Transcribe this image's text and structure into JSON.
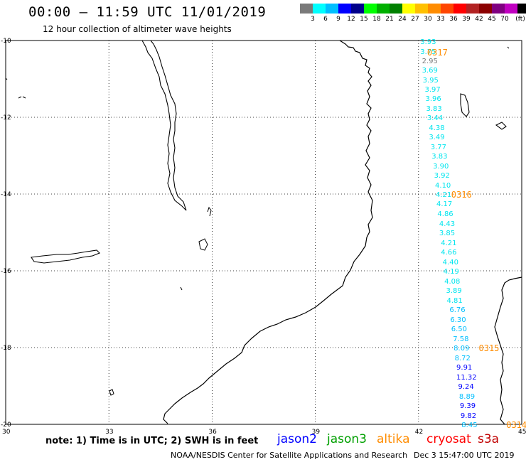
{
  "header": {
    "title": "00:00 – 11:59 UTC 11/01/2019",
    "subtitle": "12 hour collection of altimeter wave heights"
  },
  "legend": {
    "colors": [
      "#7a7a7a",
      "#00ffff",
      "#00bfff",
      "#0000ff",
      "#00008b",
      "#00ff00",
      "#00b000",
      "#008000",
      "#ffff00",
      "#ffc000",
      "#ff8c00",
      "#ff4500",
      "#ff0000",
      "#b22222",
      "#8b0000",
      "#800080",
      "#c000c0",
      "#000000"
    ],
    "labels": [
      "3",
      "6",
      "9",
      "12",
      "15",
      "18",
      "21",
      "24",
      "27",
      "30",
      "33",
      "36",
      "39",
      "42",
      "45",
      "70",
      "(ft)"
    ]
  },
  "axes": {
    "lat_labels": [
      "-10",
      "-12",
      "-14",
      "-16",
      "-18",
      "-20"
    ],
    "lon_labels": [
      "30",
      "33",
      "36",
      "39",
      "42",
      "45"
    ]
  },
  "track": {
    "points": [
      {
        "lat": -10.02,
        "lon": 42.05,
        "val": "3.93",
        "color": "#00e5ee"
      },
      {
        "lat": -10.28,
        "lon": 42.05,
        "val": "3.75",
        "color": "#00e5ee"
      },
      {
        "lat": -10.52,
        "lon": 42.1,
        "val": "2.95",
        "color": "#7a7a7a"
      },
      {
        "lat": -10.76,
        "lon": 42.1,
        "val": "3.69",
        "color": "#00e5ee"
      },
      {
        "lat": -11.02,
        "lon": 42.12,
        "val": "3.95",
        "color": "#00e5ee"
      },
      {
        "lat": -11.26,
        "lon": 42.18,
        "val": "3.97",
        "color": "#00e5ee"
      },
      {
        "lat": -11.5,
        "lon": 42.2,
        "val": "3.96",
        "color": "#00e5ee"
      },
      {
        "lat": -11.76,
        "lon": 42.22,
        "val": "3.83",
        "color": "#00e5ee"
      },
      {
        "lat": -12.0,
        "lon": 42.25,
        "val": "3.44",
        "color": "#00e5ee"
      },
      {
        "lat": -12.26,
        "lon": 42.3,
        "val": "4.38",
        "color": "#00e5ee"
      },
      {
        "lat": -12.5,
        "lon": 42.3,
        "val": "3.49",
        "color": "#00e5ee"
      },
      {
        "lat": -12.76,
        "lon": 42.35,
        "val": "3.77",
        "color": "#00e5ee"
      },
      {
        "lat": -13.0,
        "lon": 42.38,
        "val": "3.83",
        "color": "#00e5ee"
      },
      {
        "lat": -13.26,
        "lon": 42.42,
        "val": "3.90",
        "color": "#00e5ee"
      },
      {
        "lat": -13.5,
        "lon": 42.45,
        "val": "3.92",
        "color": "#00e5ee"
      },
      {
        "lat": -13.76,
        "lon": 42.48,
        "val": "4.10",
        "color": "#00e5ee"
      },
      {
        "lat": -14.0,
        "lon": 42.5,
        "val": "4.21",
        "color": "#00e5ee"
      },
      {
        "lat": -14.24,
        "lon": 42.52,
        "val": "4.17",
        "color": "#00e5ee"
      },
      {
        "lat": -14.5,
        "lon": 42.55,
        "val": "4.86",
        "color": "#00e5ee"
      },
      {
        "lat": -14.76,
        "lon": 42.6,
        "val": "4.43",
        "color": "#00e5ee"
      },
      {
        "lat": -15.0,
        "lon": 42.6,
        "val": "3.85",
        "color": "#00e5ee"
      },
      {
        "lat": -15.26,
        "lon": 42.65,
        "val": "4.21",
        "color": "#00e5ee"
      },
      {
        "lat": -15.5,
        "lon": 42.65,
        "val": "4.66",
        "color": "#00e5ee"
      },
      {
        "lat": -15.76,
        "lon": 42.7,
        "val": "4.40",
        "color": "#00e5ee"
      },
      {
        "lat": -16.0,
        "lon": 42.72,
        "val": "4.19",
        "color": "#00e5ee"
      },
      {
        "lat": -16.26,
        "lon": 42.75,
        "val": "4.08",
        "color": "#00e5ee"
      },
      {
        "lat": -16.5,
        "lon": 42.8,
        "val": "3.89",
        "color": "#00e5ee"
      },
      {
        "lat": -16.76,
        "lon": 42.82,
        "val": "4.81",
        "color": "#00e5ee"
      },
      {
        "lat": -17.0,
        "lon": 42.9,
        "val": "6.76",
        "color": "#00bfff"
      },
      {
        "lat": -17.26,
        "lon": 42.92,
        "val": "6.30",
        "color": "#00bfff"
      },
      {
        "lat": -17.5,
        "lon": 42.95,
        "val": "6.50",
        "color": "#00bfff"
      },
      {
        "lat": -17.76,
        "lon": 43.0,
        "val": "7.58",
        "color": "#00bfff"
      },
      {
        "lat": -18.0,
        "lon": 43.02,
        "val": "8.09",
        "color": "#00bfff"
      },
      {
        "lat": -18.26,
        "lon": 43.05,
        "val": "8.72",
        "color": "#00bfff"
      },
      {
        "lat": -18.5,
        "lon": 43.1,
        "val": "9.91",
        "color": "#0000ff"
      },
      {
        "lat": -18.76,
        "lon": 43.1,
        "val": "11.32",
        "color": "#0000ff"
      },
      {
        "lat": -19.0,
        "lon": 43.15,
        "val": "9.24",
        "color": "#0000ff"
      },
      {
        "lat": -19.26,
        "lon": 43.18,
        "val": "8.89",
        "color": "#00bfff"
      },
      {
        "lat": -19.5,
        "lon": 43.2,
        "val": "9.39",
        "color": "#0000ff"
      },
      {
        "lat": -19.76,
        "lon": 43.22,
        "val": "9.82",
        "color": "#0000ff"
      },
      {
        "lat": -20.0,
        "lon": 43.25,
        "val": "8.45",
        "color": "#00bfff"
      }
    ],
    "time_labels": [
      {
        "lat": -10.3,
        "lon": 42.25,
        "text": "0317"
      },
      {
        "lat": -14.0,
        "lon": 42.95,
        "text": "0316"
      },
      {
        "lat": -18.0,
        "lon": 43.75,
        "text": "0315"
      },
      {
        "lat": -20.0,
        "lon": 44.55,
        "text": "0314"
      }
    ]
  },
  "footer": {
    "note": "note: 1) Time is in UTC; 2) SWH is in feet",
    "satellites": [
      {
        "name": "jason2",
        "color": "#0000ff"
      },
      {
        "name": "jason3",
        "color": "#00a000"
      },
      {
        "name": "altika",
        "color": "#ff8c00"
      },
      {
        "name": "cryosat",
        "color": "#ff0000"
      },
      {
        "name": "s3a",
        "color": "#c00000"
      }
    ],
    "credit": "NOAA/NESDIS Center for Satellite Applications and Research",
    "date": "Dec  3 15:47:00 UTC 2019"
  }
}
